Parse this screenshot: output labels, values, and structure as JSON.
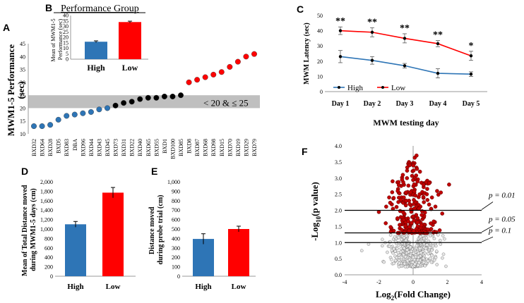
{
  "figure": {
    "panel_labels": {
      "A": "A",
      "B": "B",
      "C": "C",
      "D": "D",
      "E": "E",
      "F": "F"
    }
  },
  "colors": {
    "high": "#2E75B6",
    "low": "#FF0000",
    "black": "#000000",
    "band": "#BFBFBF",
    "volcano_red": "#C00000",
    "volcano_grey": "#E6E6E6"
  },
  "chart_data": [
    {
      "id": "A",
      "type": "scatter",
      "title": "",
      "ylabel": "MWM1-5 Performance (sec)",
      "ylim": [
        10,
        45
      ],
      "yticks": [
        10,
        15,
        20,
        25,
        30,
        35,
        40,
        45
      ],
      "band": {
        "from": 20,
        "to": 25,
        "label": "< 20 & ≤ 25"
      },
      "categories": [
        "BXD32",
        "BXD64",
        "BXD28",
        "BXD5",
        "BXD83",
        "DBA",
        "BXD96",
        "BXD44",
        "BXD43",
        "BXD45",
        "BXD73",
        "BXD31",
        "BXD22",
        "BXD40",
        "BXD65",
        "BXD55",
        "BXD1",
        "BXD100",
        "BXD85",
        "BXD8",
        "BXD87",
        "BXD68",
        "BXD98",
        "BXD15",
        "BXD70",
        "BXD19",
        "BXD29",
        "BXD79"
      ],
      "values": [
        13,
        13,
        13.5,
        15.5,
        17,
        17.5,
        18,
        18.5,
        19.5,
        20,
        21,
        22,
        22.5,
        23.5,
        24,
        24,
        24.5,
        24.5,
        25,
        30,
        31,
        32,
        33,
        34,
        36,
        38,
        40,
        41
      ],
      "groups": [
        "high",
        "high",
        "high",
        "high",
        "high",
        "high",
        "high",
        "high",
        "high",
        "high",
        "mid",
        "mid",
        "mid",
        "mid",
        "mid",
        "mid",
        "mid",
        "mid",
        "mid",
        "low",
        "low",
        "low",
        "low",
        "low",
        "low",
        "low",
        "low",
        "low"
      ]
    },
    {
      "id": "B",
      "type": "bar",
      "title": "Performance Group",
      "ylabel": "Mean of MWM1-5 Performance (sec)",
      "ylim": [
        0,
        40
      ],
      "yticks": [
        0,
        5,
        10,
        15,
        20,
        25,
        30,
        35,
        40
      ],
      "categories": [
        "High",
        "Low"
      ],
      "values": [
        16,
        34
      ],
      "errors": [
        0.8,
        0.8
      ]
    },
    {
      "id": "C",
      "type": "line",
      "ylabel": "MWM Latency (sec)",
      "xlabel": "MWM testing day",
      "ylim": [
        0,
        50
      ],
      "yticks": [
        0,
        10,
        20,
        30,
        40,
        50
      ],
      "categories": [
        "Day 1",
        "Day 2",
        "Day 3",
        "Day 4",
        "Day 5"
      ],
      "series": [
        {
          "name": "High",
          "values": [
            23,
            20.5,
            17,
            12,
            11.5
          ],
          "errors": [
            4,
            2.5,
            1.5,
            3,
            1.5
          ]
        },
        {
          "name": "Low",
          "values": [
            40,
            39,
            35,
            31.5,
            23.5
          ],
          "errors": [
            2.5,
            3,
            3,
            2,
            3
          ]
        }
      ],
      "significance": [
        "**",
        "**",
        "**",
        "**",
        "*"
      ]
    },
    {
      "id": "D",
      "type": "bar",
      "ylabel": "Mean of Total Distance moved during MWM1-5 days (cm)",
      "ylim": [
        0,
        2000
      ],
      "yticks": [
        0,
        200,
        400,
        600,
        800,
        1000,
        1200,
        1400,
        1600,
        1800,
        2000
      ],
      "ytick_labels": [
        "0",
        "200",
        "400",
        "600",
        "800",
        "1,000",
        "1,200",
        "1,400",
        "1,600",
        "1,800",
        "2,000"
      ],
      "categories": [
        "High",
        "Low"
      ],
      "values": [
        1100,
        1770
      ],
      "errors": [
        60,
        110
      ]
    },
    {
      "id": "E",
      "type": "bar",
      "ylabel": "Distance moved during probe trial (cm)",
      "ylim": [
        0,
        1000
      ],
      "yticks": [
        0,
        100,
        200,
        300,
        400,
        500,
        600,
        700,
        800,
        900,
        1000
      ],
      "ytick_labels": [
        "0",
        "100",
        "200",
        "300",
        "400",
        "500",
        "600",
        "700",
        "800",
        "900",
        "1,000"
      ],
      "categories": [
        "High",
        "Low"
      ],
      "values": [
        395,
        500
      ],
      "errors": [
        55,
        30
      ]
    },
    {
      "id": "F",
      "type": "scatter",
      "subtype": "volcano",
      "xlabel": "Log2(Fold Change)",
      "ylabel": "-Log10(p value)",
      "xlim": [
        -4,
        4
      ],
      "ylim": [
        0,
        4
      ],
      "xticks": [
        -4,
        -2,
        0,
        2,
        4
      ],
      "yticks": [
        0,
        0.5,
        1,
        1.5,
        2,
        2.5,
        3,
        3.5,
        4
      ],
      "ytick_labels": [
        "0.0",
        "0.5",
        "1.0",
        "1.5",
        "2.0",
        "2.5",
        "3.0",
        "3.5",
        "4.0"
      ],
      "thresholds": [
        {
          "y": 2.0,
          "label": "p = 0.01"
        },
        {
          "y": 1.3,
          "label": "p = 0.05"
        },
        {
          "y": 1.0,
          "label": "p = 0.1"
        }
      ],
      "labeled_points": [
        {
          "x": -2.0,
          "y": 1.95
        },
        {
          "x": -1.6,
          "y": 1.6
        },
        {
          "x": -1.4,
          "y": 2.4
        },
        {
          "x": -1.2,
          "y": 2.9
        },
        {
          "x": -0.9,
          "y": 2.6
        },
        {
          "x": -0.6,
          "y": 3.1
        },
        {
          "x": -0.4,
          "y": 2.3
        },
        {
          "x": -0.2,
          "y": 3.4
        },
        {
          "x": 0.2,
          "y": 3.7
        },
        {
          "x": 0.4,
          "y": 3.2
        },
        {
          "x": 0.6,
          "y": 2.8
        },
        {
          "x": 0.8,
          "y": 2.5
        },
        {
          "x": 1.1,
          "y": 2.4
        },
        {
          "x": 1.4,
          "y": 2.6
        },
        {
          "x": 1.7,
          "y": 1.9
        },
        {
          "x": 2.1,
          "y": 2.8
        },
        {
          "x": -2.6,
          "y": 0.95
        },
        {
          "x": -1.8,
          "y": 0.9
        },
        {
          "x": -3.0,
          "y": 0.75
        },
        {
          "x": 1.6,
          "y": 0.95
        }
      ]
    }
  ]
}
